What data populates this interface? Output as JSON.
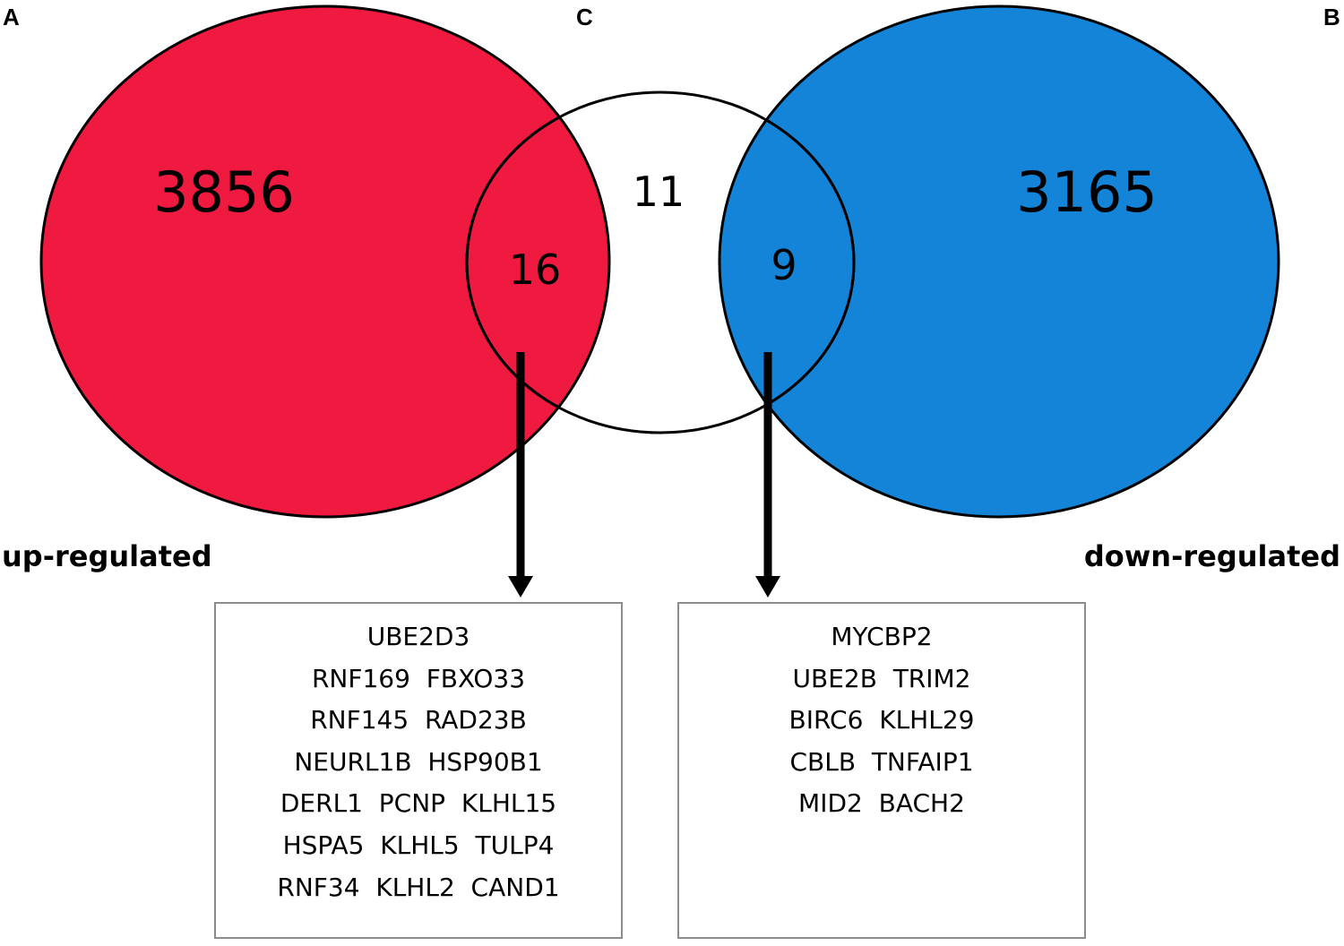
{
  "panels": {
    "a": "A",
    "b": "B",
    "c": "C"
  },
  "sets": {
    "up": {
      "label": "up-regulated",
      "count": "3856",
      "color": "#F0193F"
    },
    "down": {
      "label": "down-regulated",
      "count": "3165",
      "color": "#1384D7"
    },
    "c": {
      "count": "11"
    }
  },
  "overlaps": {
    "up_c": "16",
    "down_c": "9"
  },
  "gene_boxes": {
    "up": [
      "UBE2D3",
      "RNF169  FBXO33",
      "RNF145  RAD23B",
      "NEURL1B  HSP90B1",
      "DERL1  PCNP  KLHL15",
      "HSPA5  KLHL5  TULP4",
      "RNF34  KLHL2  CAND1"
    ],
    "down": [
      "MYCBP2",
      "UBE2B  TRIM2",
      "BIRC6  KLHL29",
      "CBLB  TNFAIP1",
      "MID2  BACH2"
    ]
  }
}
